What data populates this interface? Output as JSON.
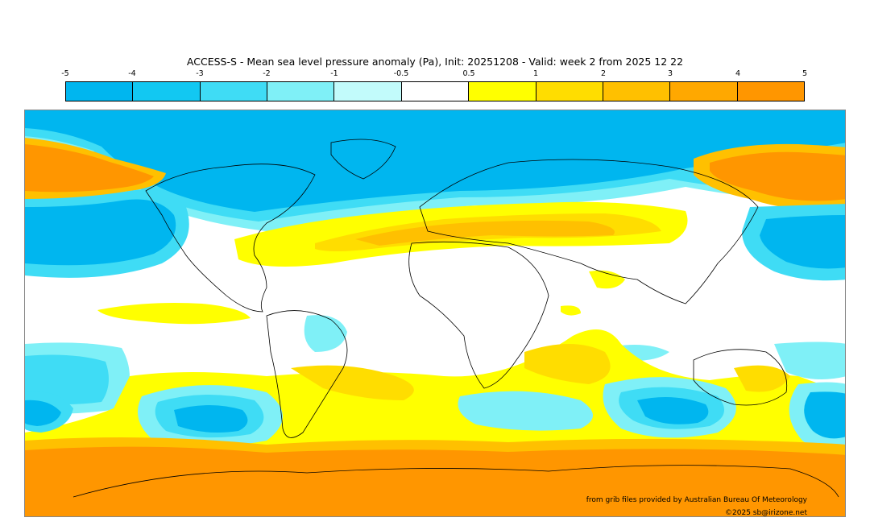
{
  "title": "ACCESS-S - Mean sea level pressure anomaly (Pa), Init: 20251208 - Valid: week 2 from 2025 12 22",
  "colorbar": {
    "ticks": [
      "-5",
      "-4",
      "-3",
      "-2",
      "-1",
      "-0.5",
      "0.5",
      "1",
      "2",
      "3",
      "4",
      "5"
    ],
    "colors": [
      "#00b6ef",
      "#12c8f2",
      "#3fdcf5",
      "#7ff0f7",
      "#c2fbfb",
      "#ffffff",
      "#ffff00",
      "#ffdd00",
      "#ffc000",
      "#ffa800",
      "#ff9600"
    ]
  },
  "map": {
    "projection": "equirectangular",
    "extent": "global"
  },
  "credits": {
    "source": "from grib files provided by Australian Bureau Of Meteorology",
    "copyright": "©2025 sb@irizone.net"
  }
}
